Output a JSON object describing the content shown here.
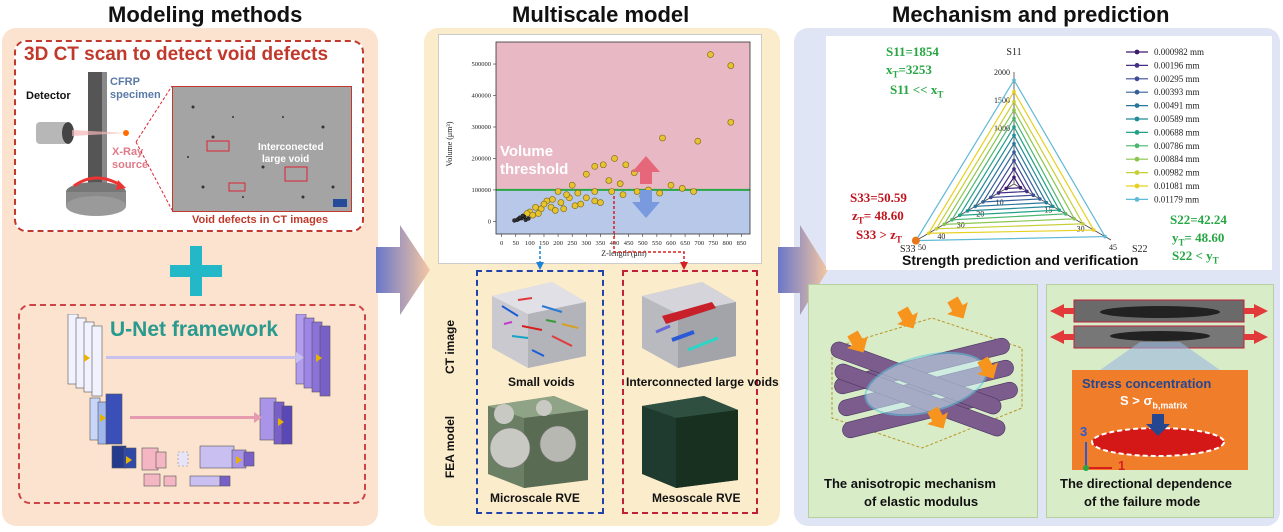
{
  "headings": {
    "modeling": "Modeling methods",
    "multiscale": "Multiscale model",
    "mechanism": "Mechanism and prediction"
  },
  "ct": {
    "title": "3D CT scan to detect void defects",
    "detector": "Detector",
    "specimen_line1": "CFRP",
    "specimen_line2": "specimen",
    "xray_line1": "X-Ray",
    "xray_line2": "source",
    "void_label_line1": "Interconected",
    "void_label_line2": "large void",
    "caption": "Void defects in CT images"
  },
  "unet": {
    "title": "U-Net framework"
  },
  "multiscale": {
    "volume_threshold_line1": "Volume",
    "volume_threshold_line2": "threshold",
    "side_ct": "CT image",
    "side_fea": "FEA model",
    "small_voids": "Small voids",
    "large_voids": "Interconnected large voids",
    "micro_rve": "Microscale RVE",
    "meso_rve": "Mesoscale RVE"
  },
  "mechanism": {
    "strength_title": "Strength prediction and verification",
    "anisotropic_line1": "The anisotropic mechanism",
    "anisotropic_line2": "of elastic modulus",
    "directional_line1": "The directional dependence",
    "directional_line2": "of the failure mode",
    "stress_conc": "Stress concentration",
    "stress_eq": "S > σ",
    "stress_sub": "b,matrix",
    "axis3": "3",
    "axis1": "1"
  },
  "radar_notes": {
    "s11": "S11=1854",
    "xt_pre": "x",
    "xt_sub": "T",
    "xt_val": "=3253",
    "s11cmp": "S11 << x",
    "s33": "S33=50.59",
    "zt_pre": "z",
    "zt_val": "= 48.60",
    "s33cmp": "S33 > z",
    "s22": "S22=42.24",
    "yt_pre": "y",
    "yt_val": "= 48.60",
    "s22cmp": "S22 < y"
  },
  "colors": {
    "left_panel": "#fbe3cf",
    "mid_panel": "#fbeccb",
    "right_panel": "#dfe5f4",
    "title_red": "#c0392b",
    "teal": "#2aa6a0",
    "green_note": "#27a644",
    "red_note": "#c0141e"
  },
  "chart_data": [
    {
      "type": "scatter",
      "xlabel": "Z-length (μm)",
      "ylabel": "Volume (μm³)",
      "xticks": [
        0,
        50,
        100,
        150,
        200,
        250,
        300,
        350,
        400,
        450,
        500,
        550,
        600,
        650,
        700,
        750,
        800,
        850
      ],
      "yticks": [
        0,
        100000,
        200000,
        300000,
        400000,
        500000
      ],
      "ytick_labels": [
        "0",
        "100000",
        "200000",
        "300000",
        "400000",
        "500000"
      ],
      "xlim": [
        -20,
        880
      ],
      "ylim": [
        -40000,
        570000
      ],
      "threshold": 100000,
      "series": [
        {
          "values": [
            [
              740,
              530000
            ],
            [
              812,
              495000
            ],
            [
              812,
              315000
            ],
            [
              695,
              255000
            ],
            [
              570,
              265000
            ],
            [
              470,
              155000
            ],
            [
              440,
              180000
            ],
            [
              400,
              200000
            ],
            [
              360,
              180000
            ],
            [
              330,
              175000
            ],
            [
              300,
              150000
            ],
            [
              420,
              120000
            ],
            [
              520,
              100000
            ],
            [
              560,
              90000
            ],
            [
              600,
              115000
            ],
            [
              640,
              105000
            ],
            [
              680,
              95000
            ],
            [
              480,
              95000
            ],
            [
              380,
              130000
            ],
            [
              250,
              115000
            ],
            [
              200,
              95000
            ],
            [
              270,
              90000
            ],
            [
              330,
              95000
            ],
            [
              390,
              95000
            ],
            [
              240,
              75000
            ],
            [
              180,
              70000
            ],
            [
              160,
              65000
            ],
            [
              210,
              60000
            ],
            [
              280,
              55000
            ],
            [
              330,
              65000
            ],
            [
              120,
              45000
            ],
            [
              140,
              40000
            ],
            [
              175,
              45000
            ],
            [
              220,
              40000
            ],
            [
              260,
              50000
            ],
            [
              100,
              30000
            ],
            [
              90,
              25000
            ],
            [
              130,
              25000
            ],
            [
              300,
              75000
            ],
            [
              430,
              85000
            ],
            [
              500,
              80000
            ],
            [
              350,
              60000
            ],
            [
              230,
              85000
            ],
            [
              150,
              55000
            ],
            [
              190,
              35000
            ],
            [
              110,
              20000
            ],
            [
              80,
              15000
            ],
            [
              70,
              10000
            ],
            [
              60,
              8000
            ],
            [
              55,
              5000
            ],
            [
              65,
              12000
            ],
            [
              75,
              18000
            ],
            [
              85,
              5000
            ],
            [
              95,
              9000
            ],
            [
              45,
              3000
            ]
          ]
        }
      ]
    },
    {
      "type": "radar",
      "axes": [
        "S11",
        "S22",
        "S33"
      ],
      "ticks_s11": [
        "2000",
        "1500",
        "1000"
      ],
      "ticks_s22": [
        "45",
        "30",
        "15"
      ],
      "ticks_s33": [
        "50",
        "40",
        "30",
        "20",
        "10"
      ],
      "max": [
        2000,
        45,
        50
      ],
      "series": [
        {
          "name": "0.000982 mm",
          "values": [
            120,
            3,
            4
          ],
          "color": "#3c1b6e"
        },
        {
          "name": "0.00196 mm",
          "values": [
            270,
            6,
            8
          ],
          "color": "#432e85"
        },
        {
          "name": "0.00295 mm",
          "values": [
            420,
            9,
            12
          ],
          "color": "#3d4a96"
        },
        {
          "name": "0.00393 mm",
          "values": [
            570,
            12,
            16
          ],
          "color": "#33609a"
        },
        {
          "name": "0.00491 mm",
          "values": [
            720,
            15,
            20
          ],
          "color": "#2a769b"
        },
        {
          "name": "0.00589 mm",
          "values": [
            870,
            18,
            24
          ],
          "color": "#228b97"
        },
        {
          "name": "0.00688 mm",
          "values": [
            1020,
            21,
            28
          ],
          "color": "#22a187"
        },
        {
          "name": "0.00786 mm",
          "values": [
            1170,
            24,
            32
          ],
          "color": "#4cb66e"
        },
        {
          "name": "0.00884 mm",
          "values": [
            1320,
            28,
            36
          ],
          "color": "#8ac54f"
        },
        {
          "name": "0.00982 mm",
          "values": [
            1470,
            32,
            40
          ],
          "color": "#c6cf36"
        },
        {
          "name": "0.01081 mm",
          "values": [
            1650,
            37,
            44
          ],
          "color": "#e8d020"
        },
        {
          "name": "0.01179 mm",
          "values": [
            1854,
            42.24,
            50.59
          ],
          "color": "#60b9d6"
        }
      ]
    }
  ]
}
